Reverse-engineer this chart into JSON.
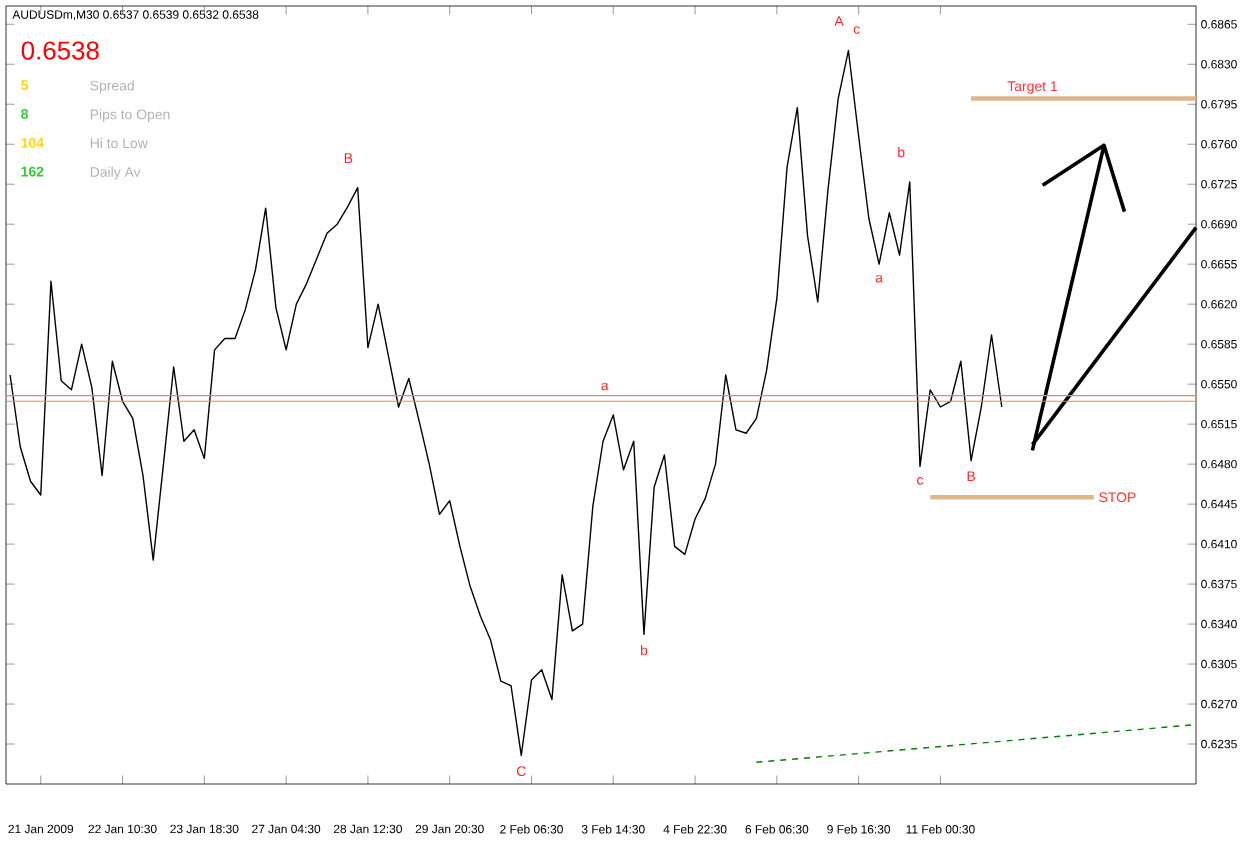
{
  "chart_data": {
    "type": "line",
    "title": "AUDUSDm,M30 0.6537 0.6539 0.6532 0.6538",
    "categories": [
      null,
      null,
      null,
      "21 Jan 2009",
      null,
      null,
      null,
      null,
      null,
      null,
      null,
      "22 Jan 10:30",
      null,
      null,
      null,
      null,
      null,
      null,
      null,
      "23 Jan 18:30",
      null,
      null,
      null,
      null,
      null,
      null,
      null,
      "27 Jan 04:30",
      null,
      null,
      null,
      null,
      null,
      null,
      null,
      "28 Jan 12:30",
      null,
      null,
      null,
      null,
      null,
      null,
      null,
      "29 Jan 20:30",
      null,
      null,
      null,
      null,
      null,
      null,
      null,
      "2 Feb 06:30",
      null,
      null,
      null,
      null,
      null,
      null,
      null,
      "3 Feb 14:30",
      null,
      null,
      null,
      null,
      null,
      null,
      null,
      "4 Feb 22:30",
      null,
      null,
      null,
      null,
      null,
      null,
      null,
      "6 Feb 06:30",
      null,
      null,
      null,
      null,
      null,
      null,
      null,
      "9 Feb 16:30",
      null,
      null,
      null,
      null,
      null,
      null,
      null,
      "11 Feb 00:30",
      null,
      null,
      null,
      null,
      null,
      null,
      null,
      null,
      null,
      null,
      null,
      null,
      null,
      null,
      null,
      null,
      null,
      null,
      null,
      null,
      null,
      null,
      null,
      null,
      null
    ],
    "ylim": [
      0.62,
      0.6881
    ],
    "yticks": [
      {
        "value": 0.6235,
        "label": "0.6235"
      },
      {
        "value": 0.627,
        "label": "0.6270"
      },
      {
        "value": 0.6305,
        "label": "0.6305"
      },
      {
        "value": 0.634,
        "label": "0.6340"
      },
      {
        "value": 0.6375,
        "label": "0.6375"
      },
      {
        "value": 0.641,
        "label": "0.6410"
      },
      {
        "value": 0.6445,
        "label": "0.6445"
      },
      {
        "value": 0.648,
        "label": "0.6480"
      },
      {
        "value": 0.6515,
        "label": "0.6515"
      },
      {
        "value": 0.655,
        "label": "0.6550"
      },
      {
        "value": 0.6585,
        "label": "0.6585"
      },
      {
        "value": 0.662,
        "label": "0.6620"
      },
      {
        "value": 0.6655,
        "label": "0.6655"
      },
      {
        "value": 0.669,
        "label": "0.6690"
      },
      {
        "value": 0.6725,
        "label": "0.6725"
      },
      {
        "value": 0.676,
        "label": "0.6760"
      },
      {
        "value": 0.6795,
        "label": "0.6795"
      },
      {
        "value": 0.683,
        "label": "0.6830"
      },
      {
        "value": 0.6865,
        "label": "0.6865"
      }
    ],
    "grid": false,
    "marker": "none",
    "series": [
      {
        "color": "#000000",
        "values": [
          0.6558,
          0.6495,
          0.6465,
          0.6453,
          0.664,
          0.6553,
          0.6545,
          0.6585,
          0.6547,
          0.647,
          0.657,
          0.6535,
          0.652,
          0.647,
          0.6396,
          0.648,
          0.6565,
          0.65,
          0.651,
          0.6485,
          0.658,
          0.659,
          0.659,
          0.6615,
          0.665,
          0.6704,
          0.6617,
          0.658,
          0.662,
          0.6638,
          0.666,
          0.6682,
          0.669,
          0.6705,
          0.6722,
          0.6582,
          0.662,
          0.6575,
          0.653,
          0.6555,
          0.6518,
          0.648,
          0.6436,
          0.6448,
          0.6408,
          0.6373,
          0.6347,
          0.6326,
          0.629,
          0.6286,
          0.6225,
          0.6291,
          0.63,
          0.6274,
          0.6383,
          0.6334,
          0.634,
          0.6443,
          0.65,
          0.6523,
          0.6475,
          0.65,
          0.6331,
          0.646,
          0.6488,
          0.6408,
          0.6401,
          0.6432,
          0.645,
          0.648,
          0.6558,
          0.651,
          0.6507,
          0.652,
          0.6562,
          0.6625,
          0.674,
          0.6792,
          0.668,
          0.6622,
          0.672,
          0.68,
          0.6842,
          0.6767,
          0.6695,
          0.6655,
          0.67,
          0.6663,
          0.6727,
          0.6478,
          0.6545,
          0.653,
          0.6535,
          0.657,
          0.6483,
          0.653,
          0.6593,
          0.653,
          null,
          null,
          null,
          null,
          null,
          null,
          null,
          null,
          null,
          null,
          null,
          null,
          null,
          null,
          null,
          null,
          null,
          null,
          null
        ]
      },
      {
        "name": "Target 1",
        "color": "#deb887",
        "values": [
          null,
          null,
          null,
          null,
          null,
          null,
          null,
          null,
          null,
          null,
          null,
          null,
          null,
          null,
          null,
          null,
          null,
          null,
          null,
          null,
          null,
          null,
          null,
          null,
          null,
          null,
          null,
          null,
          null,
          null,
          null,
          null,
          null,
          null,
          null,
          null,
          null,
          null,
          null,
          null,
          null,
          null,
          null,
          null,
          null,
          null,
          null,
          null,
          null,
          null,
          null,
          null,
          null,
          null,
          null,
          null,
          null,
          null,
          null,
          null,
          null,
          null,
          null,
          null,
          null,
          null,
          null,
          null,
          null,
          null,
          null,
          null,
          null,
          null,
          null,
          null,
          null,
          null,
          null,
          null,
          null,
          null,
          null,
          null,
          null,
          null,
          null,
          null,
          null,
          null,
          null,
          null,
          null,
          null,
          0.68,
          null,
          null,
          null,
          null,
          null,
          null,
          null,
          null,
          null,
          null,
          null,
          null,
          null,
          null,
          null,
          null,
          null,
          null,
          null,
          null,
          null,
          0.68
        ]
      },
      {
        "name": "STOP",
        "color": "#deb887",
        "values": [
          null,
          null,
          null,
          null,
          null,
          null,
          null,
          null,
          null,
          null,
          null,
          null,
          null,
          null,
          null,
          null,
          null,
          null,
          null,
          null,
          null,
          null,
          null,
          null,
          null,
          null,
          null,
          null,
          null,
          null,
          null,
          null,
          null,
          null,
          null,
          null,
          null,
          null,
          null,
          null,
          null,
          null,
          null,
          null,
          null,
          null,
          null,
          null,
          null,
          null,
          null,
          null,
          null,
          null,
          null,
          null,
          null,
          null,
          null,
          null,
          null,
          null,
          null,
          null,
          null,
          null,
          null,
          null,
          null,
          null,
          null,
          null,
          null,
          null,
          null,
          null,
          null,
          null,
          null,
          null,
          null,
          null,
          null,
          null,
          null,
          null,
          null,
          null,
          null,
          null,
          0.6451,
          null,
          null,
          null,
          null,
          null,
          null,
          null,
          null,
          null,
          null,
          null,
          null,
          null,
          null,
          null,
          0.6451,
          null,
          null,
          null,
          null,
          null,
          null,
          null,
          null,
          null,
          null
        ]
      },
      {
        "color": "#000000",
        "values": [
          null,
          null,
          null,
          null,
          null,
          null,
          null,
          null,
          null,
          null,
          null,
          null,
          null,
          null,
          null,
          null,
          null,
          null,
          null,
          null,
          null,
          null,
          null,
          null,
          null,
          null,
          null,
          null,
          null,
          null,
          null,
          null,
          null,
          null,
          null,
          null,
          null,
          null,
          null,
          null,
          null,
          null,
          null,
          null,
          null,
          null,
          null,
          null,
          null,
          null,
          null,
          null,
          null,
          null,
          null,
          null,
          null,
          null,
          null,
          null,
          null,
          null,
          null,
          null,
          null,
          null,
          null,
          null,
          null,
          null,
          null,
          null,
          null,
          null,
          null,
          null,
          null,
          null,
          null,
          null,
          null,
          null,
          null,
          null,
          null,
          null,
          null,
          null,
          null,
          null,
          null,
          null,
          null,
          null,
          null,
          null,
          null,
          null,
          null,
          null,
          0.6492,
          null,
          null,
          null,
          null,
          null,
          null,
          0.6759,
          null,
          0.6701,
          null,
          null,
          null,
          null,
          null,
          null,
          null
        ]
      },
      {
        "color": "#000000",
        "values": [
          null,
          null,
          null,
          null,
          null,
          null,
          null,
          null,
          null,
          null,
          null,
          null,
          null,
          null,
          null,
          null,
          null,
          null,
          null,
          null,
          null,
          null,
          null,
          null,
          null,
          null,
          null,
          null,
          null,
          null,
          null,
          null,
          null,
          null,
          null,
          null,
          null,
          null,
          null,
          null,
          null,
          null,
          null,
          null,
          null,
          null,
          null,
          null,
          null,
          null,
          null,
          null,
          null,
          null,
          null,
          null,
          null,
          null,
          null,
          null,
          null,
          null,
          null,
          null,
          null,
          null,
          null,
          null,
          null,
          null,
          null,
          null,
          null,
          null,
          null,
          null,
          null,
          null,
          null,
          null,
          null,
          null,
          null,
          null,
          null,
          null,
          null,
          null,
          null,
          null,
          null,
          null,
          null,
          null,
          null,
          null,
          null,
          null,
          null,
          null,
          null,
          0.6724,
          null,
          null,
          null,
          null,
          null,
          0.6759,
          null,
          null,
          null,
          null,
          null,
          null,
          null,
          null,
          null
        ]
      },
      {
        "color": "#000000",
        "values": [
          null,
          null,
          null,
          null,
          null,
          null,
          null,
          null,
          null,
          null,
          null,
          null,
          null,
          null,
          null,
          null,
          null,
          null,
          null,
          null,
          null,
          null,
          null,
          null,
          null,
          null,
          null,
          null,
          null,
          null,
          null,
          null,
          null,
          null,
          null,
          null,
          null,
          null,
          null,
          null,
          null,
          null,
          null,
          null,
          null,
          null,
          null,
          null,
          null,
          null,
          null,
          null,
          null,
          null,
          null,
          null,
          null,
          null,
          null,
          null,
          null,
          null,
          null,
          null,
          null,
          null,
          null,
          null,
          null,
          null,
          null,
          null,
          null,
          null,
          null,
          null,
          null,
          null,
          null,
          null,
          null,
          null,
          null,
          null,
          null,
          null,
          null,
          null,
          null,
          null,
          null,
          null,
          null,
          null,
          null,
          null,
          null,
          null,
          null,
          null,
          0.6497,
          null,
          null,
          null,
          null,
          null,
          null,
          null,
          null,
          null,
          null,
          null,
          null,
          null,
          null,
          null,
          0.6687
        ]
      },
      {
        "color": "#008000",
        "line_style": "dashed",
        "values": [
          null,
          null,
          null,
          null,
          null,
          null,
          null,
          null,
          null,
          null,
          null,
          null,
          null,
          null,
          null,
          null,
          null,
          null,
          null,
          null,
          null,
          null,
          null,
          null,
          null,
          null,
          null,
          null,
          null,
          null,
          null,
          null,
          null,
          null,
          null,
          null,
          null,
          null,
          null,
          null,
          null,
          null,
          null,
          null,
          null,
          null,
          null,
          null,
          null,
          null,
          null,
          null,
          null,
          null,
          null,
          null,
          null,
          null,
          null,
          null,
          null,
          null,
          null,
          null,
          null,
          null,
          null,
          null,
          null,
          null,
          null,
          null,
          null,
          0.6219,
          null,
          null,
          null,
          null,
          null,
          null,
          null,
          null,
          null,
          null,
          null,
          null,
          null,
          null,
          null,
          null,
          null,
          null,
          null,
          null,
          null,
          null,
          null,
          null,
          null,
          null,
          null,
          null,
          null,
          null,
          null,
          null,
          null,
          null,
          null,
          null,
          null,
          null,
          null,
          null,
          null,
          null,
          0.6252
        ]
      }
    ],
    "ref_lines": [
      {
        "axis": "y",
        "value": 0.654,
        "color": "#f08080"
      },
      {
        "axis": "y",
        "value": 0.6535,
        "color": "#f08080"
      }
    ],
    "annotations": [
      "0.6538",
      "5",
      "Spread",
      "8",
      "Pips to Open",
      "104",
      "Hi to Low",
      "162",
      "Daily Av",
      {
        "text": "B",
        "y": 0.6722
      },
      {
        "text": "A",
        "y": 0.6842
      },
      {
        "text": "c",
        "y": 0.6842
      },
      {
        "text": "b",
        "y": 0.6727
      },
      {
        "text": "a",
        "y": 0.6655
      },
      {
        "text": "c",
        "y": 0.6478
      },
      {
        "text": "B",
        "y": 0.6483
      },
      {
        "text": "a",
        "y": 0.6523
      },
      {
        "text": "b",
        "y": 0.6331
      },
      {
        "text": "C",
        "y": 0.6225
      }
    ]
  }
}
